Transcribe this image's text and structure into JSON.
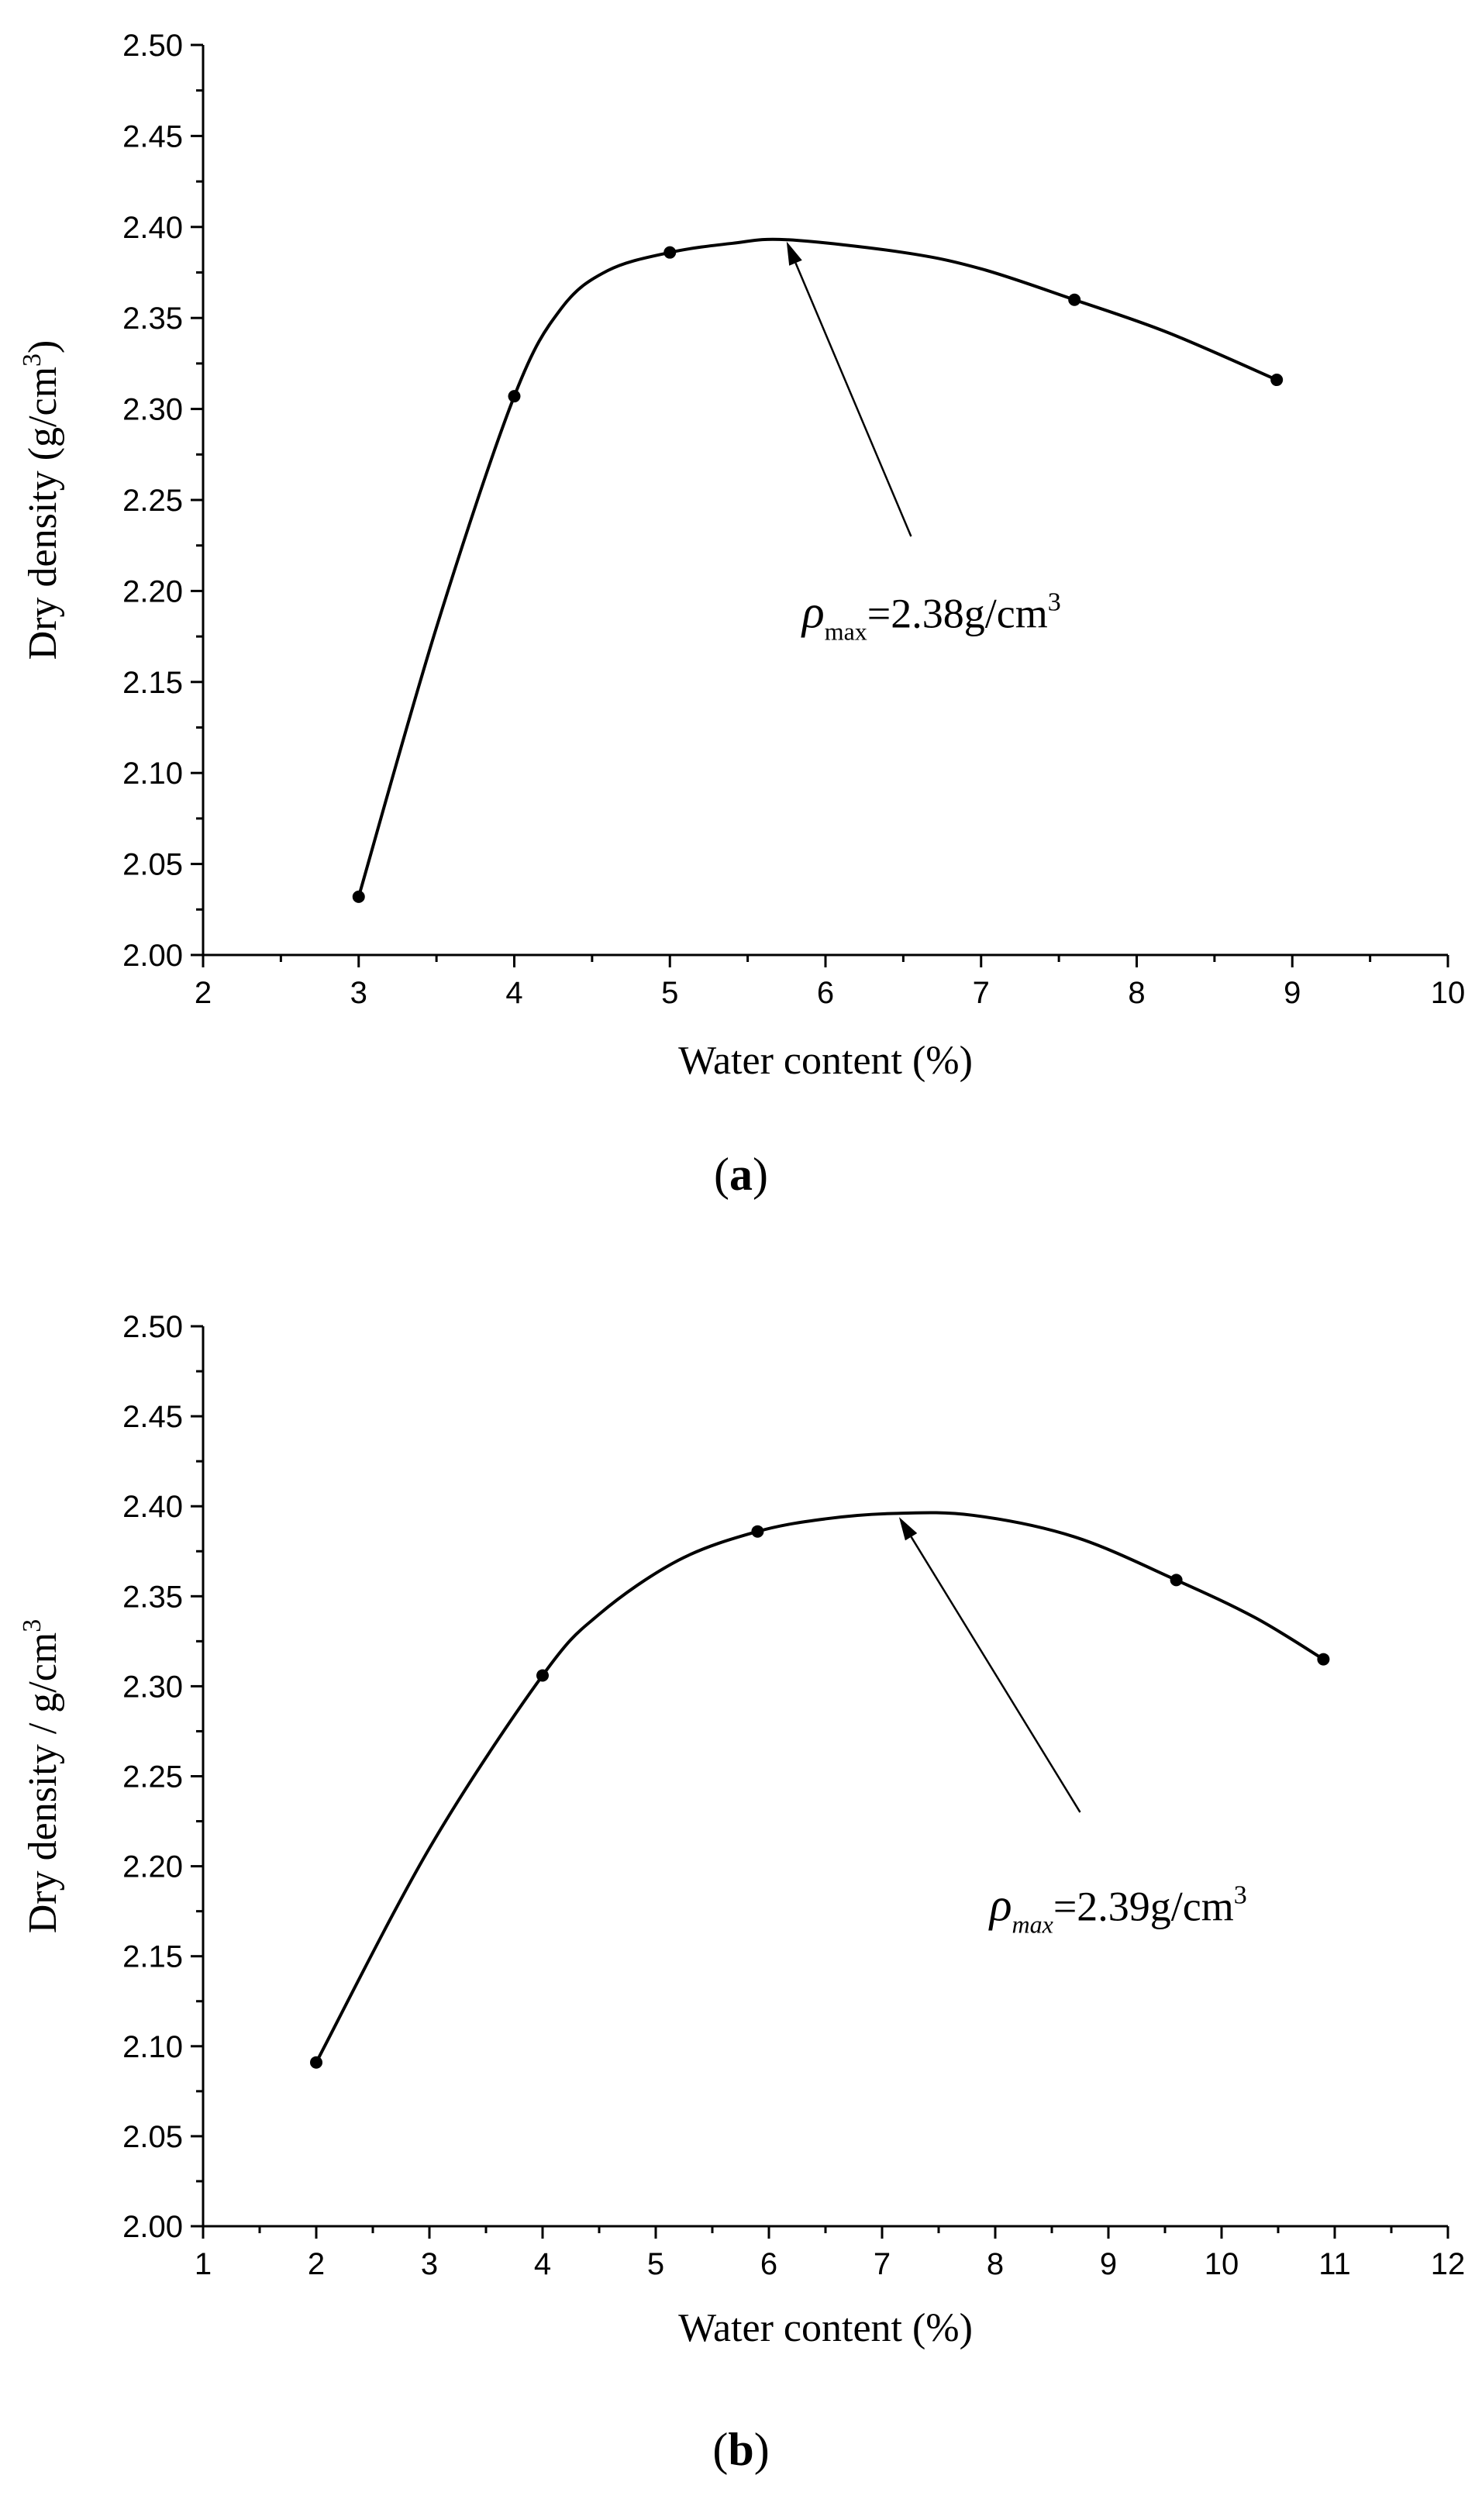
{
  "chart_data": [
    {
      "type": "line",
      "panel_label": "a",
      "xlabel": "Water content (%)",
      "ylabel": "Dry density (g/cm",
      "ylabel_sup": "3",
      "ylabel_close": ")",
      "xlim": [
        2,
        10
      ],
      "ylim": [
        2.0,
        2.5
      ],
      "xticks": [
        2,
        3,
        4,
        5,
        6,
        7,
        8,
        9,
        10
      ],
      "yticks": [
        "2.00",
        "2.05",
        "2.10",
        "2.15",
        "2.20",
        "2.25",
        "2.30",
        "2.35",
        "2.40",
        "2.45",
        "2.50"
      ],
      "points": [
        {
          "x": 3,
          "y": 2.032
        },
        {
          "x": 4,
          "y": 2.307
        },
        {
          "x": 5,
          "y": 2.386
        },
        {
          "x": 7.6,
          "y": 2.36
        },
        {
          "x": 8.9,
          "y": 2.316
        }
      ],
      "curve": [
        {
          "x": 3,
          "y": 2.032
        },
        {
          "x": 3.5,
          "y": 2.18
        },
        {
          "x": 4,
          "y": 2.307
        },
        {
          "x": 4.3,
          "y": 2.355
        },
        {
          "x": 4.6,
          "y": 2.376
        },
        {
          "x": 5,
          "y": 2.386
        },
        {
          "x": 5.4,
          "y": 2.391
        },
        {
          "x": 5.75,
          "y": 2.393
        },
        {
          "x": 6.5,
          "y": 2.386
        },
        {
          "x": 7.0,
          "y": 2.377
        },
        {
          "x": 7.6,
          "y": 2.36
        },
        {
          "x": 8.2,
          "y": 2.342
        },
        {
          "x": 8.9,
          "y": 2.316
        }
      ],
      "annotation": {
        "symbol": "ρ",
        "subscript": "max",
        "value_text": "=2.38g/cm",
        "sup": "3",
        "arrow_tip": {
          "x": 5.75,
          "y": 2.392
        },
        "arrow_tail": {
          "x": 6.55,
          "y": 2.23
        },
        "text_pos": {
          "x": 5.85,
          "y": 2.18
        }
      }
    },
    {
      "type": "line",
      "panel_label": "b",
      "xlabel": "Water content (%)",
      "ylabel": "Dry density / g/cm",
      "ylabel_sup": "3",
      "ylabel_close": "",
      "xlim": [
        1,
        12
      ],
      "ylim": [
        2.0,
        2.5
      ],
      "xticks": [
        1,
        2,
        3,
        4,
        5,
        6,
        7,
        8,
        9,
        10,
        11,
        12
      ],
      "yticks": [
        "2.00",
        "2.05",
        "2.10",
        "2.15",
        "2.20",
        "2.25",
        "2.30",
        "2.35",
        "2.40",
        "2.45",
        "2.50"
      ],
      "points": [
        {
          "x": 2,
          "y": 2.091
        },
        {
          "x": 4,
          "y": 2.306
        },
        {
          "x": 5.9,
          "y": 2.386
        },
        {
          "x": 9.6,
          "y": 2.359
        },
        {
          "x": 10.9,
          "y": 2.315
        }
      ],
      "curve": [
        {
          "x": 2,
          "y": 2.091
        },
        {
          "x": 3,
          "y": 2.21
        },
        {
          "x": 4,
          "y": 2.306
        },
        {
          "x": 4.5,
          "y": 2.34
        },
        {
          "x": 5.2,
          "y": 2.37
        },
        {
          "x": 5.9,
          "y": 2.386
        },
        {
          "x": 6.5,
          "y": 2.393
        },
        {
          "x": 7.1,
          "y": 2.396
        },
        {
          "x": 7.8,
          "y": 2.395
        },
        {
          "x": 8.7,
          "y": 2.383
        },
        {
          "x": 9.6,
          "y": 2.359
        },
        {
          "x": 10.3,
          "y": 2.338
        },
        {
          "x": 10.9,
          "y": 2.315
        }
      ],
      "annotation": {
        "symbol": "ρ",
        "subscript": "max",
        "value_text": "=2.39g/cm",
        "sup": "3",
        "arrow_tip": {
          "x": 7.15,
          "y": 2.394
        },
        "arrow_tail": {
          "x": 8.75,
          "y": 2.23
        },
        "text_pos": {
          "x": 7.95,
          "y": 2.17
        }
      }
    }
  ]
}
